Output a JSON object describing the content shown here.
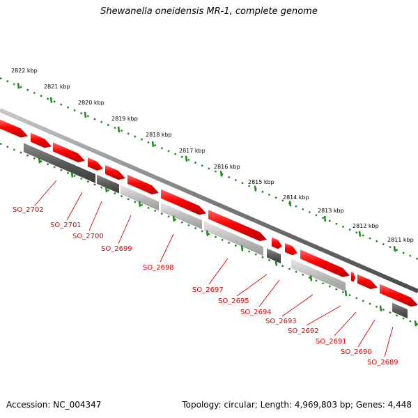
{
  "title": "Shewanella oneidensis MR-1, complete genome",
  "footer": {
    "accession": "Accession: NC_004347",
    "topology": "Topology: circular; Length: 4,969,803 bp; Genes: 4,448"
  },
  "scale_labels": [
    "2822 kbp",
    "2821 kbp",
    "2820 kbp",
    "2819 kbp",
    "2818 kbp",
    "2817 kbp",
    "2816 kbp",
    "2815 kbp",
    "2814 kbp",
    "2813 kbp",
    "2812 kbp",
    "2811 kbp"
  ],
  "gene_labels": [
    "SO_2702",
    "SO_2701",
    "SO_2700",
    "SO_2699",
    "SO_2698",
    "SO_2697",
    "SO_2695",
    "SO_2694",
    "SO_2693",
    "SO_2692",
    "SO_2691",
    "SO_2690",
    "SO_2689"
  ],
  "colors": {
    "forward_gene": "#ff0000",
    "reverse_dark": "#5a5a5a",
    "reverse_light": "#bdbdbd",
    "backbone": "#777777",
    "scale_ticks": "#1a8a1a",
    "labels": "#e00000"
  }
}
